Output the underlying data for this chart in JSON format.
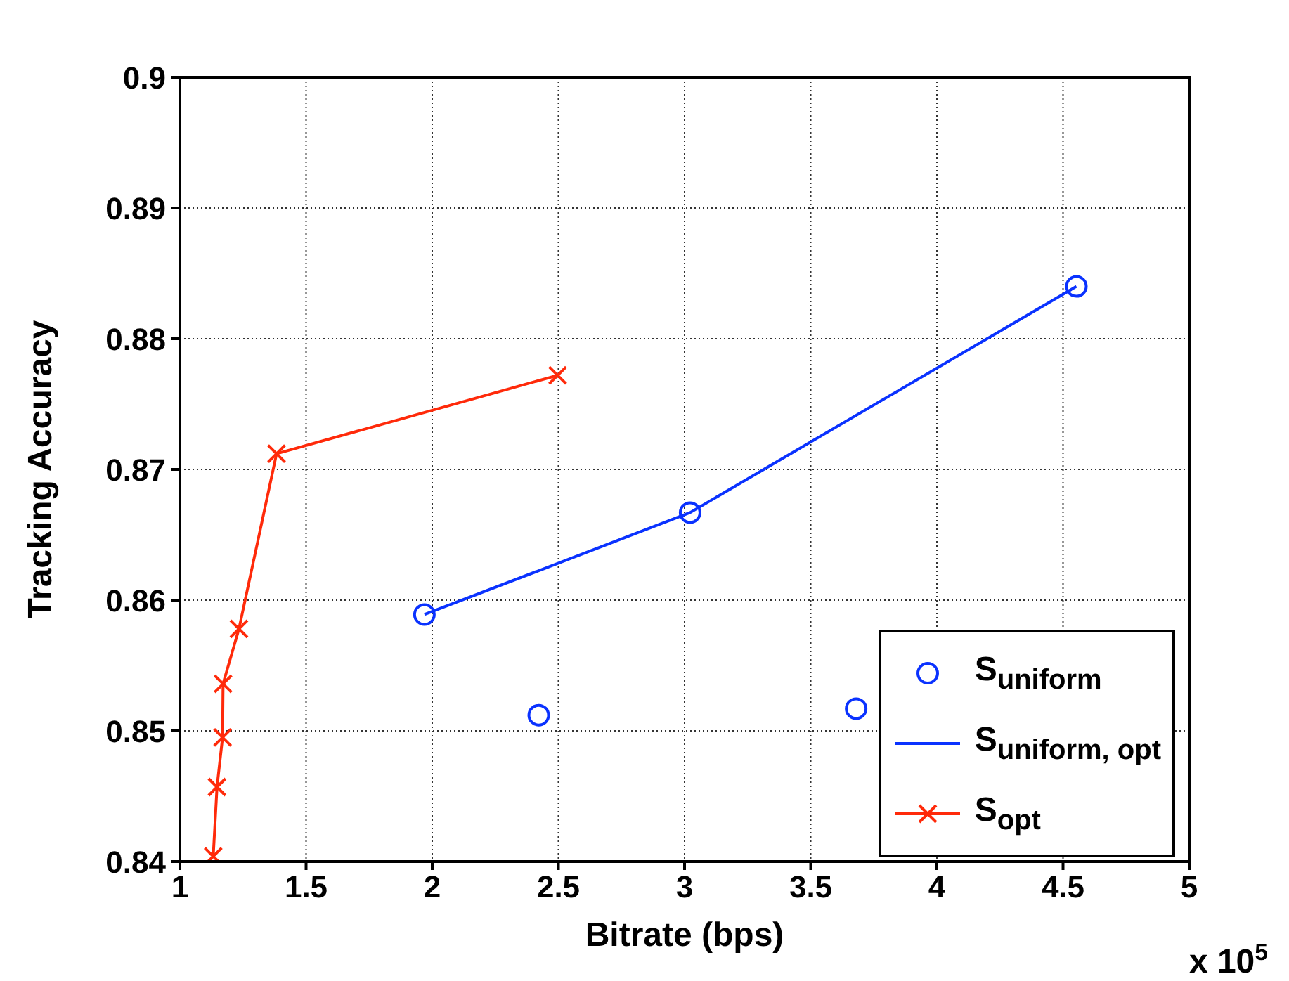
{
  "chart_data": {
    "type": "line",
    "xlabel": "Bitrate (bps)",
    "ylabel": "Tracking Accuracy",
    "annotations": [
      "x 10$^{5}$"
    ],
    "xlim": [
      1,
      5
    ],
    "xticks": [
      1,
      1.5,
      2,
      2.5,
      3,
      3.5,
      4,
      4.5,
      5
    ],
    "ylim": [
      0.84,
      0.9
    ],
    "yticks": [
      0.84,
      0.85,
      0.86,
      0.87,
      0.88,
      0.89,
      0.9
    ],
    "grid": true,
    "legend": "bottom right",
    "series": [
      {
        "name": "S$_{uniform}$",
        "type": "scatter",
        "marker": "circle",
        "color": "#0a32ff",
        "x": [
          1.969,
          2.422,
          3.022,
          3.68,
          4.553
        ],
        "values": [
          0.8589,
          0.8512,
          0.8667,
          0.8517,
          0.884
        ]
      },
      {
        "name": "S$_{uniform, opt}$",
        "marker": "none",
        "color": "#0a32ff",
        "x": [
          1.969,
          3.022,
          4.553
        ],
        "values": [
          0.8589,
          0.8667,
          0.884
        ]
      },
      {
        "name": "S$_{opt}$",
        "marker": "cross",
        "color": "#ff2a0a",
        "x": [
          1.132,
          1.147,
          1.169,
          1.171,
          1.234,
          1.383,
          2.497
        ],
        "values": [
          0.8404,
          0.8457,
          0.8495,
          0.8536,
          0.8578,
          0.8712,
          0.8772
        ]
      }
    ]
  }
}
